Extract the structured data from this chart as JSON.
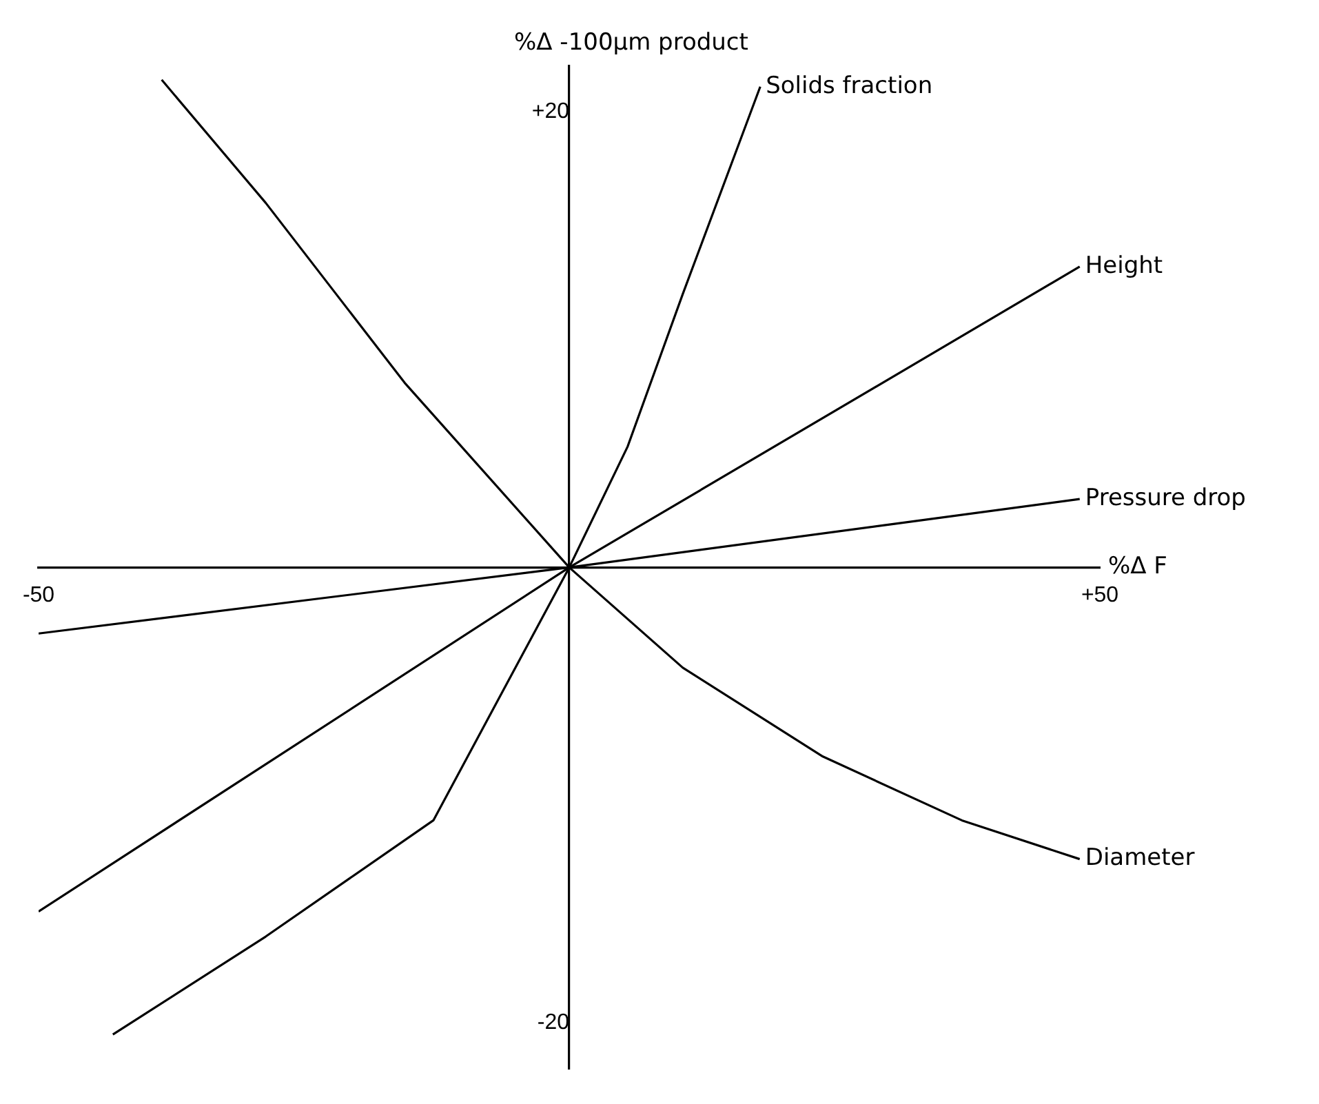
{
  "chart_data": {
    "type": "line",
    "xlabel": "%Δ F",
    "ylabel": "%Δ -100μm product",
    "xlim": [
      -50,
      50
    ],
    "ylim": [
      -22,
      22
    ],
    "xticks": [
      {
        "value": -50,
        "label": "-50"
      },
      {
        "value": 50,
        "label": "+50"
      }
    ],
    "yticks": [
      {
        "value": -20,
        "label": "-20"
      },
      {
        "value": 20,
        "label": "+20"
      }
    ],
    "grid": false,
    "legend": false,
    "marker": "none",
    "line_style": "solid",
    "series": [
      {
        "name": "Diameter",
        "color": "#000000",
        "x": [
          -38.4,
          -28.6,
          -15.5,
          0,
          10.7,
          23.9,
          37,
          48.1
        ],
        "values": [
          21.4,
          16.0,
          8.1,
          0,
          -4.4,
          -8.3,
          -11.1,
          -12.8
        ]
      },
      {
        "name": "Solids fraction",
        "color": "#000000",
        "x": [
          -43,
          -28.6,
          -12.8,
          0,
          5.5,
          10.7,
          18
        ],
        "values": [
          -20.5,
          -16.2,
          -11.1,
          0,
          5.3,
          12,
          21.1
        ]
      },
      {
        "name": "Height",
        "color": "#000000",
        "x": [
          -50,
          0,
          48.1
        ],
        "values": [
          -15.1,
          0,
          13.2
        ]
      },
      {
        "name": "Pressure drop",
        "color": "#000000",
        "x": [
          -50,
          0,
          48.1
        ],
        "values": [
          -2.9,
          0,
          3.0
        ]
      }
    ]
  }
}
